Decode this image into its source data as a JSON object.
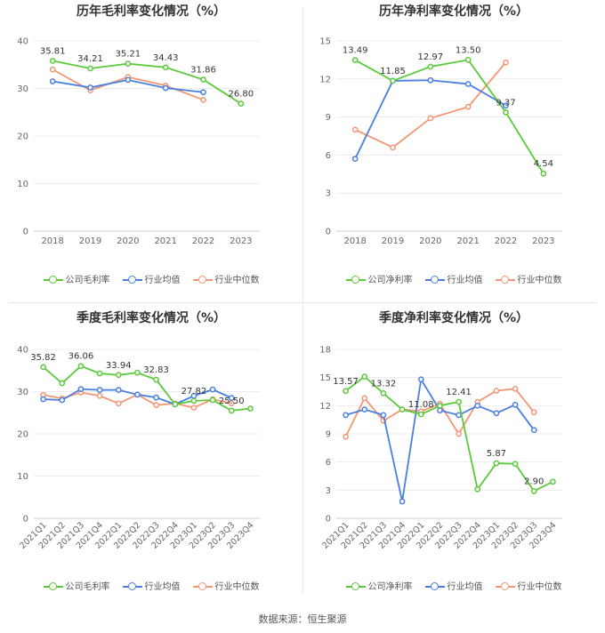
{
  "colors": {
    "company": "#5ac93a",
    "industry_avg": "#4a7fe0",
    "industry_median": "#f39674"
  },
  "source_text": "数据来源：恒生聚源",
  "chart_data": [
    {
      "type": "line",
      "title": "历年毛利率变化情况（%）",
      "categories": [
        "2018",
        "2019",
        "2020",
        "2021",
        "2022",
        "2023"
      ],
      "ylim": [
        0,
        40
      ],
      "yticks": [
        0,
        10,
        20,
        30,
        40
      ],
      "grid": true,
      "legend_position": "bottom",
      "series": [
        {
          "name": "公司毛利率",
          "key": "company",
          "values": [
            35.81,
            34.21,
            35.21,
            34.43,
            31.86,
            26.8
          ],
          "labeled": true
        },
        {
          "name": "行业均值",
          "key": "industry_avg",
          "values": [
            31.5,
            30.2,
            31.8,
            30.1,
            29.2,
            null
          ]
        },
        {
          "name": "行业中位数",
          "key": "industry_median",
          "values": [
            34.0,
            29.6,
            32.4,
            30.6,
            27.6,
            null
          ]
        }
      ]
    },
    {
      "type": "line",
      "title": "历年净利率变化情况（%）",
      "categories": [
        "2018",
        "2019",
        "2020",
        "2021",
        "2022",
        "2023"
      ],
      "ylim": [
        0,
        15
      ],
      "yticks": [
        0,
        3,
        6,
        9,
        12,
        15
      ],
      "grid": true,
      "legend_position": "bottom",
      "series": [
        {
          "name": "公司净利率",
          "key": "company",
          "values": [
            13.49,
            11.85,
            12.97,
            13.5,
            9.37,
            4.54
          ],
          "labeled": true
        },
        {
          "name": "行业均值",
          "key": "industry_avg",
          "values": [
            5.7,
            11.85,
            11.9,
            11.6,
            9.9,
            null
          ]
        },
        {
          "name": "行业中位数",
          "key": "industry_median",
          "values": [
            8.0,
            6.6,
            8.9,
            9.8,
            13.3,
            null
          ]
        }
      ]
    },
    {
      "type": "line",
      "title": "季度毛利率变化情况（%）",
      "categories": [
        "2021Q1",
        "2021Q2",
        "2021Q3",
        "2021Q4",
        "2022Q1",
        "2022Q2",
        "2022Q3",
        "2022Q4",
        "2023Q1",
        "2023Q2",
        "2023Q3",
        "2023Q4"
      ],
      "ylim": [
        0,
        40
      ],
      "yticks": [
        0,
        10,
        20,
        30,
        40
      ],
      "grid": true,
      "legend_position": "bottom",
      "series": [
        {
          "name": "公司毛利率",
          "key": "company",
          "values": [
            35.82,
            32.0,
            36.06,
            34.3,
            33.94,
            34.5,
            32.83,
            27.0,
            27.82,
            28.0,
            25.5,
            26.0
          ],
          "point_labels": [
            "35.82",
            null,
            "36.06",
            null,
            "33.94",
            null,
            "32.83",
            null,
            "27.82",
            null,
            "25.50",
            null
          ]
        },
        {
          "name": "行业均值",
          "key": "industry_avg",
          "values": [
            28.2,
            28.0,
            30.6,
            30.4,
            30.4,
            29.3,
            28.6,
            27.0,
            29.0,
            30.5,
            28.5,
            null
          ]
        },
        {
          "name": "行业中位数",
          "key": "industry_median",
          "values": [
            29.2,
            28.4,
            29.8,
            29.0,
            27.2,
            29.3,
            26.8,
            27.2,
            26.2,
            28.2,
            27.2,
            null
          ]
        }
      ]
    },
    {
      "type": "line",
      "title": "季度净利率变化情况（%）",
      "categories": [
        "2021Q1",
        "2021Q2",
        "2021Q3",
        "2021Q4",
        "2022Q1",
        "2022Q2",
        "2022Q3",
        "2022Q4",
        "2023Q1",
        "2023Q2",
        "2023Q3",
        "2023Q4"
      ],
      "ylim": [
        0,
        18
      ],
      "yticks": [
        0,
        3,
        6,
        9,
        12,
        15,
        18
      ],
      "grid": true,
      "legend_position": "bottom",
      "series": [
        {
          "name": "公司净利率",
          "key": "company",
          "values": [
            13.57,
            15.1,
            13.32,
            11.6,
            11.08,
            12.0,
            12.41,
            3.1,
            5.87,
            5.8,
            2.9,
            3.9
          ],
          "point_labels": [
            "13.57",
            null,
            "13.32",
            null,
            "11.08",
            null,
            "12.41",
            null,
            "5.87",
            null,
            "2.90",
            null
          ]
        },
        {
          "name": "行业均值",
          "key": "industry_avg",
          "values": [
            11.0,
            11.6,
            11.0,
            1.8,
            14.8,
            11.5,
            11.0,
            12.0,
            11.2,
            12.1,
            9.4,
            null
          ]
        },
        {
          "name": "行业中位数",
          "key": "industry_median",
          "values": [
            8.7,
            12.8,
            10.4,
            11.6,
            11.4,
            12.2,
            9.0,
            12.4,
            13.6,
            13.8,
            11.3,
            null
          ]
        }
      ]
    }
  ]
}
